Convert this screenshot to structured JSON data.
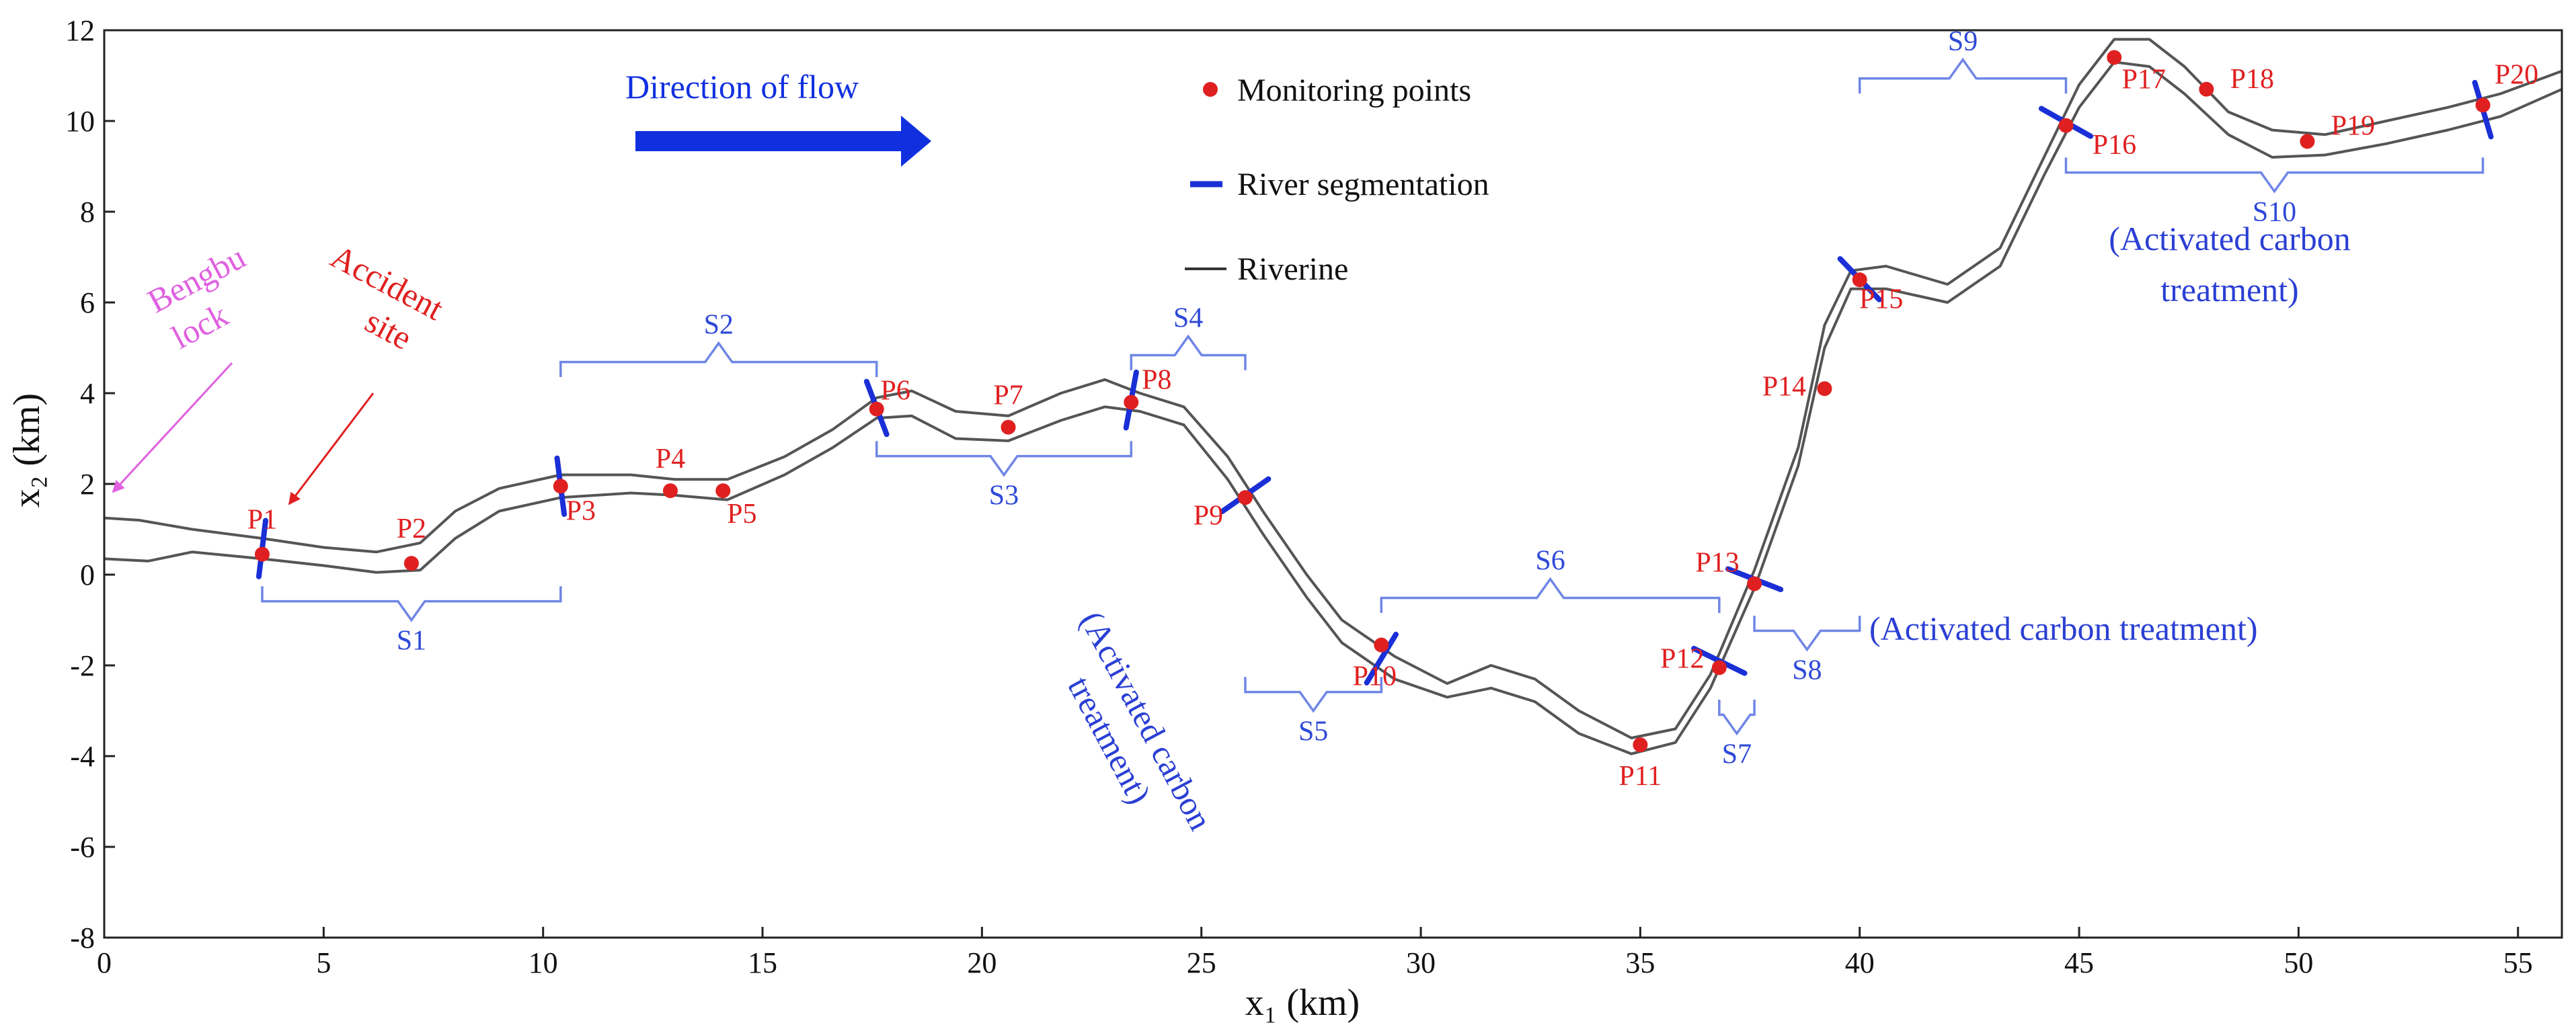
{
  "colors": {
    "river": "#555555",
    "monitoring_point": "#e02020",
    "point_label": "#e02020",
    "segment_marker": "#1a2fd6",
    "segment_bracket": "#6f86e6",
    "segment_label": "#2e49d8",
    "treatment_text": "#2a3fd4",
    "flow_arrow": "#1030e0",
    "accident": "#e02020",
    "lock": "#e060e0"
  },
  "chart_data": {
    "type": "line",
    "title": "",
    "xlabel": "x₁ (km)",
    "ylabel": "x₂ (km)",
    "xlim": [
      0,
      56
    ],
    "ylim": [
      -8,
      12
    ],
    "x_ticks": [
      0,
      5,
      10,
      15,
      20,
      25,
      30,
      35,
      40,
      45,
      50,
      55
    ],
    "y_ticks": [
      -8,
      -6,
      -4,
      -2,
      0,
      2,
      4,
      6,
      8,
      10,
      12
    ],
    "grid": false,
    "legend": {
      "position": "top-center",
      "entries": [
        {
          "label": "Monitoring points",
          "marker": "dot"
        },
        {
          "label": "River segmentation",
          "marker": "blue-dash"
        },
        {
          "label": "Riverine",
          "marker": "gray-line"
        }
      ]
    },
    "river_bank_upper": [
      [
        0,
        1.25
      ],
      [
        0.8,
        1.2
      ],
      [
        2,
        1.0
      ],
      [
        3.6,
        0.8
      ],
      [
        5,
        0.6
      ],
      [
        6.2,
        0.5
      ],
      [
        7.2,
        0.7
      ],
      [
        8,
        1.4
      ],
      [
        9,
        1.9
      ],
      [
        10.4,
        2.2
      ],
      [
        12,
        2.2
      ],
      [
        13,
        2.1
      ],
      [
        14.2,
        2.1
      ],
      [
        15.5,
        2.6
      ],
      [
        16.6,
        3.2
      ],
      [
        17.6,
        3.9
      ],
      [
        18.4,
        4.05
      ],
      [
        19.4,
        3.6
      ],
      [
        20.6,
        3.5
      ],
      [
        21.8,
        4.0
      ],
      [
        22.8,
        4.3
      ],
      [
        23.6,
        4.0
      ],
      [
        24.6,
        3.7
      ],
      [
        25.6,
        2.6
      ],
      [
        26.4,
        1.4
      ],
      [
        27.4,
        0.0
      ],
      [
        28.2,
        -1.0
      ],
      [
        29.4,
        -1.8
      ],
      [
        30.6,
        -2.4
      ],
      [
        31.6,
        -2.0
      ],
      [
        32.6,
        -2.3
      ],
      [
        33.6,
        -3.0
      ],
      [
        34.8,
        -3.6
      ],
      [
        35.8,
        -3.4
      ],
      [
        36.6,
        -2.2
      ],
      [
        37.6,
        0.1
      ],
      [
        38.6,
        2.8
      ],
      [
        39.2,
        5.5
      ],
      [
        39.8,
        6.7
      ],
      [
        40.6,
        6.8
      ],
      [
        42,
        6.4
      ],
      [
        43.2,
        7.2
      ],
      [
        44.2,
        9.2
      ],
      [
        45,
        10.8
      ],
      [
        45.8,
        11.8
      ],
      [
        46.6,
        11.8
      ],
      [
        47.4,
        11.2
      ],
      [
        48.4,
        10.2
      ],
      [
        49.4,
        9.8
      ],
      [
        50.6,
        9.7
      ],
      [
        52,
        10.0
      ],
      [
        53.4,
        10.3
      ],
      [
        54.6,
        10.6
      ],
      [
        56,
        11.1
      ]
    ],
    "river_bank_lower": [
      [
        0,
        0.35
      ],
      [
        1,
        0.3
      ],
      [
        2,
        0.5
      ],
      [
        3.6,
        0.35
      ],
      [
        5,
        0.2
      ],
      [
        6.2,
        0.05
      ],
      [
        7.2,
        0.1
      ],
      [
        8,
        0.8
      ],
      [
        9,
        1.4
      ],
      [
        10.4,
        1.7
      ],
      [
        12,
        1.8
      ],
      [
        13,
        1.75
      ],
      [
        14.2,
        1.65
      ],
      [
        15.5,
        2.2
      ],
      [
        16.6,
        2.8
      ],
      [
        17.6,
        3.45
      ],
      [
        18.4,
        3.5
      ],
      [
        19.4,
        3.0
      ],
      [
        20.6,
        2.95
      ],
      [
        21.8,
        3.4
      ],
      [
        22.8,
        3.7
      ],
      [
        23.6,
        3.6
      ],
      [
        24.6,
        3.3
      ],
      [
        25.6,
        2.1
      ],
      [
        26.4,
        0.9
      ],
      [
        27.4,
        -0.5
      ],
      [
        28.2,
        -1.5
      ],
      [
        29.4,
        -2.3
      ],
      [
        30.6,
        -2.7
      ],
      [
        31.6,
        -2.5
      ],
      [
        32.6,
        -2.8
      ],
      [
        33.6,
        -3.5
      ],
      [
        34.8,
        -3.95
      ],
      [
        35.8,
        -3.7
      ],
      [
        36.6,
        -2.5
      ],
      [
        37.6,
        -0.3
      ],
      [
        38.6,
        2.4
      ],
      [
        39.2,
        5.0
      ],
      [
        39.8,
        6.3
      ],
      [
        40.6,
        6.3
      ],
      [
        42,
        6.0
      ],
      [
        43.2,
        6.8
      ],
      [
        44.2,
        8.8
      ],
      [
        45,
        10.3
      ],
      [
        45.8,
        11.3
      ],
      [
        46.6,
        11.2
      ],
      [
        47.4,
        10.6
      ],
      [
        48.4,
        9.7
      ],
      [
        49.4,
        9.2
      ],
      [
        50.6,
        9.25
      ],
      [
        52,
        9.5
      ],
      [
        53.4,
        9.8
      ],
      [
        54.6,
        10.1
      ],
      [
        56,
        10.7
      ]
    ],
    "monitoring_points": [
      {
        "label": "P1",
        "x": 3.6,
        "y": 0.45
      },
      {
        "label": "P2",
        "x": 7.0,
        "y": 0.25
      },
      {
        "label": "P3",
        "x": 10.4,
        "y": 1.95
      },
      {
        "label": "P4",
        "x": 12.9,
        "y": 1.85
      },
      {
        "label": "P5",
        "x": 14.1,
        "y": 1.85
      },
      {
        "label": "P6",
        "x": 17.6,
        "y": 3.65
      },
      {
        "label": "P7",
        "x": 20.6,
        "y": 3.25
      },
      {
        "label": "P8",
        "x": 23.4,
        "y": 3.8
      },
      {
        "label": "P9",
        "x": 26.0,
        "y": 1.7
      },
      {
        "label": "P10",
        "x": 29.1,
        "y": -1.55
      },
      {
        "label": "P11",
        "x": 35.0,
        "y": -3.75
      },
      {
        "label": "P12",
        "x": 36.8,
        "y": -2.05
      },
      {
        "label": "P13",
        "x": 37.6,
        "y": -0.2
      },
      {
        "label": "P14",
        "x": 39.2,
        "y": 4.1
      },
      {
        "label": "P15",
        "x": 40.0,
        "y": 6.5
      },
      {
        "label": "P16",
        "x": 44.7,
        "y": 9.9
      },
      {
        "label": "P17",
        "x": 45.8,
        "y": 11.4
      },
      {
        "label": "P18",
        "x": 47.9,
        "y": 10.7
      },
      {
        "label": "P19",
        "x": 50.2,
        "y": 9.55
      },
      {
        "label": "P20",
        "x": 54.2,
        "y": 10.35
      }
    ],
    "segment_boundaries_x": [
      3.6,
      10.4,
      17.6,
      23.4,
      26.0,
      29.1,
      36.8,
      37.6,
      40.0,
      44.7,
      54.2
    ],
    "segments": [
      {
        "label": "S1",
        "from": "P1",
        "to": "P3"
      },
      {
        "label": "S2",
        "from": "P3",
        "to": "P6"
      },
      {
        "label": "S3",
        "from": "P6",
        "to": "P8"
      },
      {
        "label": "S4",
        "from": "P8",
        "to": "P9"
      },
      {
        "label": "S5",
        "from": "P9",
        "to": "P10"
      },
      {
        "label": "S6",
        "from": "P10",
        "to": "P12"
      },
      {
        "label": "S7",
        "from": "P12",
        "to": "P13"
      },
      {
        "label": "S8",
        "from": "P13",
        "to": "P15"
      },
      {
        "label": "S9",
        "from": "P15",
        "to": "P16"
      },
      {
        "label": "S10",
        "from": "P16",
        "to": "P20"
      }
    ],
    "annotations": {
      "flow_direction": "Direction of flow",
      "bengbu_lock_line1": "Bengbu",
      "bengbu_lock_line2": "lock",
      "accident_site_line1": "Accident",
      "accident_site_line2": "site",
      "treatment_s5_line1": "(Activated carbon",
      "treatment_s5_line2": "treatment)",
      "treatment_s7": "(Activated carbon treatment)",
      "treatment_s10_line1": "(Activated carbon",
      "treatment_s10_line2": "treatment)"
    }
  }
}
